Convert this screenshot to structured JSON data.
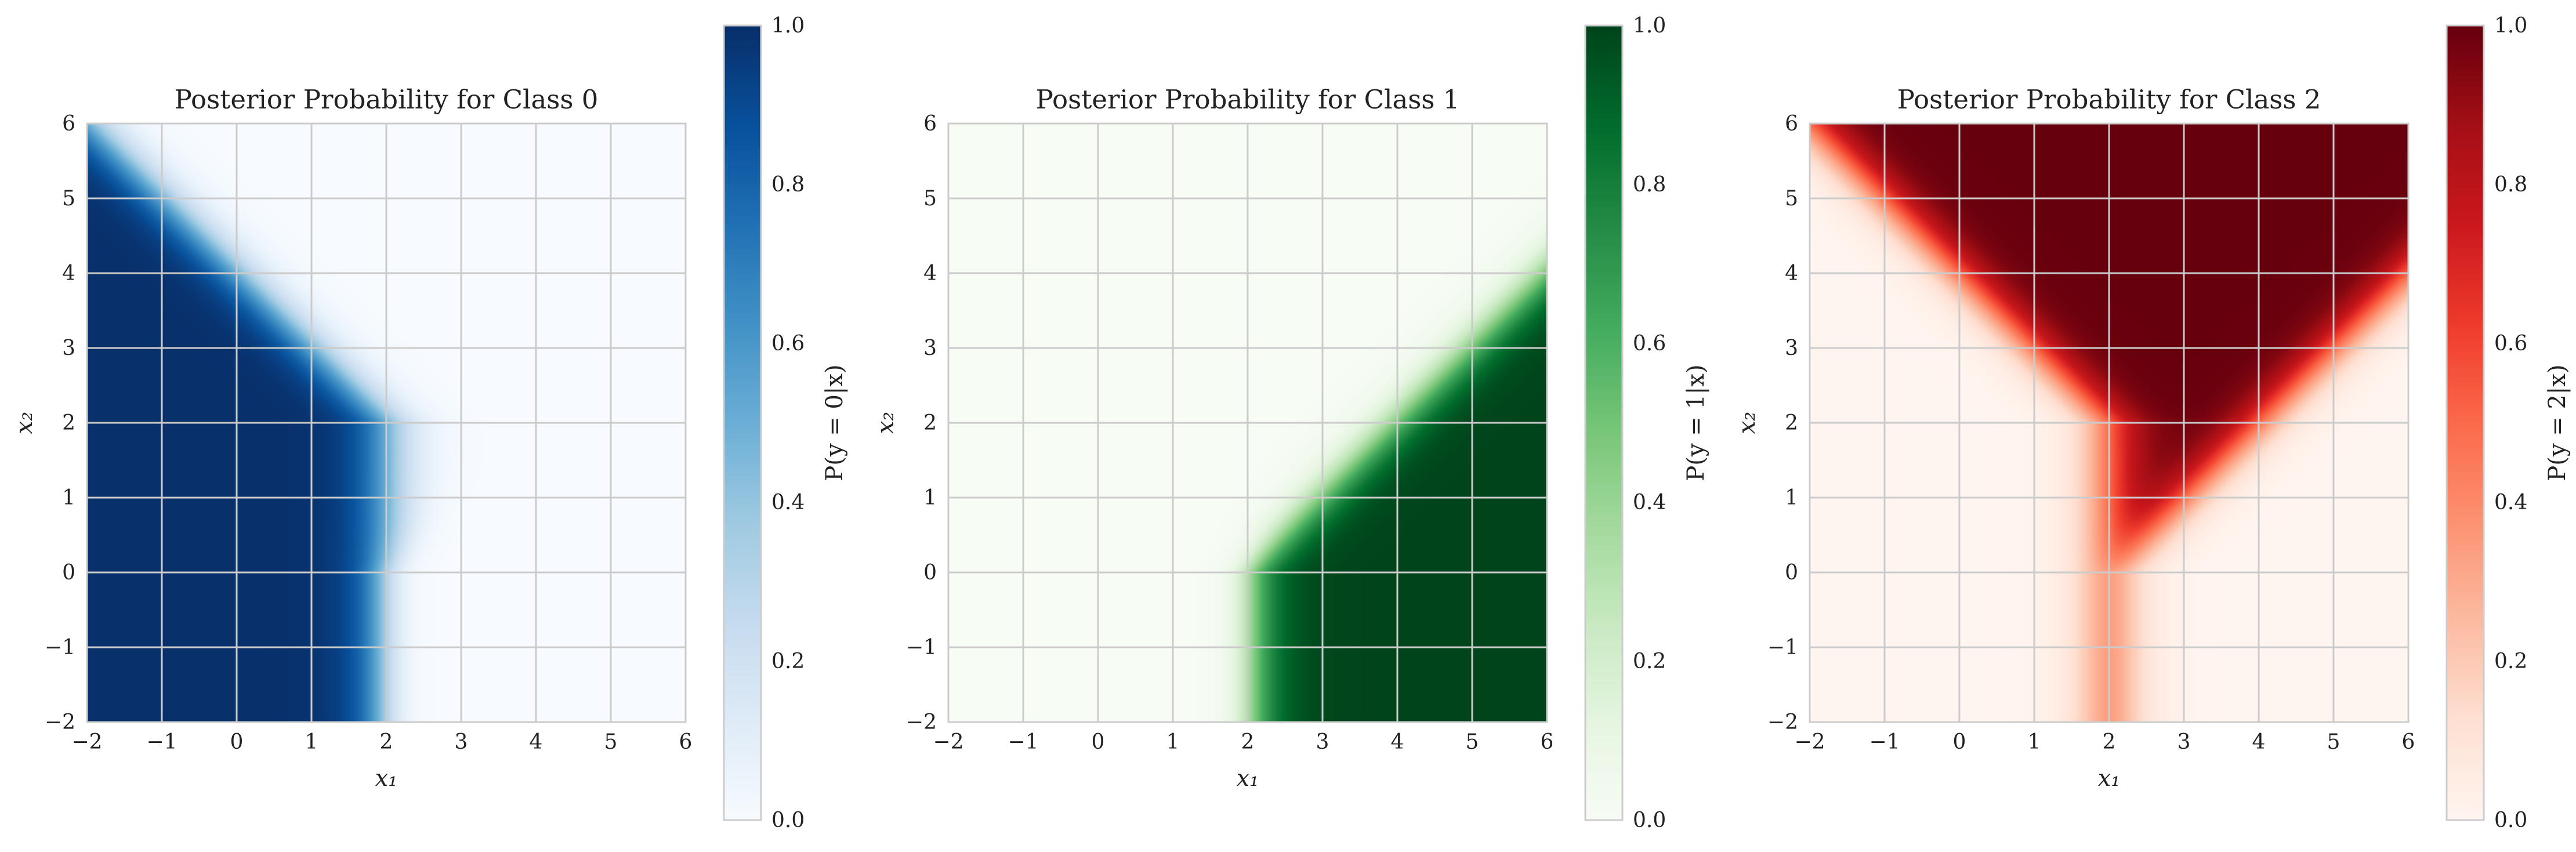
{
  "chart_data": [
    {
      "type": "heatmap",
      "title": "Posterior Probability for Class 0",
      "xlabel": "x₁",
      "ylabel": "x₂",
      "xlim": [
        -2,
        6
      ],
      "ylim": [
        -2,
        6
      ],
      "x_ticks": [
        -2,
        -1,
        0,
        1,
        2,
        3,
        4,
        5,
        6
      ],
      "y_ticks": [
        -2,
        -1,
        0,
        1,
        2,
        3,
        4,
        5,
        6
      ],
      "x_tick_labels": [
        "−2",
        "−1",
        "0",
        "1",
        "2",
        "3",
        "4",
        "5",
        "6"
      ],
      "y_tick_labels": [
        "−2",
        "−1",
        "0",
        "1",
        "2",
        "3",
        "4",
        "5",
        "6"
      ],
      "grid": true,
      "colormap": "Blues",
      "colorbar": {
        "label": "P(y = 0|x)",
        "range": [
          0,
          1
        ],
        "ticks": [
          0.0,
          0.2,
          0.4,
          0.6,
          0.8,
          1.0
        ],
        "tick_labels": [
          "0.0",
          "0.2",
          "0.4",
          "0.6",
          "0.8",
          "1.0"
        ]
      },
      "high_probability_region": "x₁ < 2 and x₂ < 4 − x₁ (lower-left)"
    },
    {
      "type": "heatmap",
      "title": "Posterior Probability for Class 1",
      "xlabel": "x₁",
      "ylabel": "x₂",
      "xlim": [
        -2,
        6
      ],
      "ylim": [
        -2,
        6
      ],
      "x_ticks": [
        -2,
        -1,
        0,
        1,
        2,
        3,
        4,
        5,
        6
      ],
      "y_ticks": [
        -2,
        -1,
        0,
        1,
        2,
        3,
        4,
        5,
        6
      ],
      "x_tick_labels": [
        "−2",
        "−1",
        "0",
        "1",
        "2",
        "3",
        "4",
        "5",
        "6"
      ],
      "y_tick_labels": [
        "−2",
        "−1",
        "0",
        "1",
        "2",
        "3",
        "4",
        "5",
        "6"
      ],
      "grid": true,
      "colormap": "Greens",
      "colorbar": {
        "label": "P(y = 1|x)",
        "range": [
          0,
          1
        ],
        "ticks": [
          0.0,
          0.2,
          0.4,
          0.6,
          0.8,
          1.0
        ],
        "tick_labels": [
          "0.0",
          "0.2",
          "0.4",
          "0.6",
          "0.8",
          "1.0"
        ]
      },
      "high_probability_region": "x₁ > 2 and x₂ < x₁ − 2 (lower-right)"
    },
    {
      "type": "heatmap",
      "title": "Posterior Probability for Class 2",
      "xlabel": "x₁",
      "ylabel": "x₂",
      "xlim": [
        -2,
        6
      ],
      "ylim": [
        -2,
        6
      ],
      "x_ticks": [
        -2,
        -1,
        0,
        1,
        2,
        3,
        4,
        5,
        6
      ],
      "y_ticks": [
        -2,
        -1,
        0,
        1,
        2,
        3,
        4,
        5,
        6
      ],
      "x_tick_labels": [
        "−2",
        "−1",
        "0",
        "1",
        "2",
        "3",
        "4",
        "5",
        "6"
      ],
      "y_tick_labels": [
        "−2",
        "−1",
        "0",
        "1",
        "2",
        "3",
        "4",
        "5",
        "6"
      ],
      "grid": true,
      "colormap": "Reds",
      "colorbar": {
        "label": "P(y = 2|x)",
        "range": [
          0,
          1
        ],
        "ticks": [
          0.0,
          0.2,
          0.4,
          0.6,
          0.8,
          1.0
        ],
        "tick_labels": [
          "0.0",
          "0.2",
          "0.4",
          "0.6",
          "0.8",
          "1.0"
        ]
      },
      "high_probability_region": "x₂ above the V through (2, 1) (upper band)"
    }
  ]
}
